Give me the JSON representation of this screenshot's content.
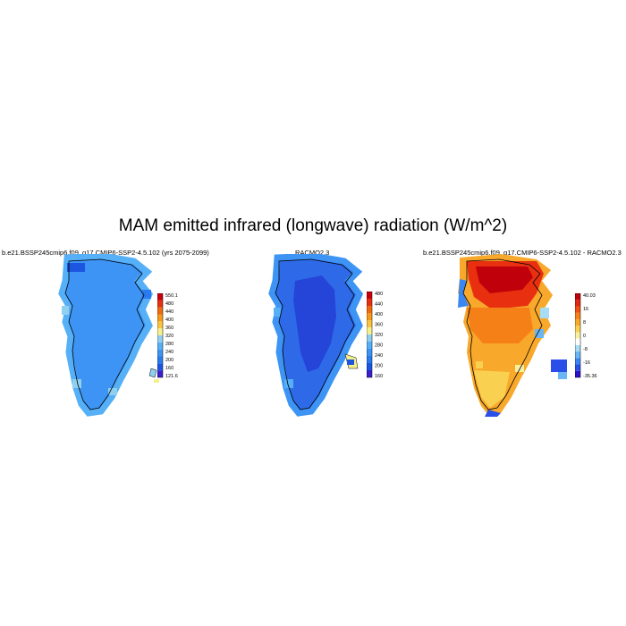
{
  "title": "MAM emitted infrared (longwave) radiation (W/m^2)",
  "panels": [
    {
      "title": "b.e21.BSSP245cmip6.f09_g17.CMIP6-SSP2-4.5.102 (yrs 2075-2099)",
      "colorbar": {
        "colors": [
          "#3a1fd0",
          "#1b55e0",
          "#2a7af0",
          "#3d94f5",
          "#56b0f7",
          "#8fd0f0",
          "#f5f08c",
          "#fac442",
          "#f59a1c",
          "#f06a10",
          "#e83010",
          "#c8000e"
        ],
        "labels": [
          "550.1",
          "480",
          "440",
          "400",
          "360",
          "320",
          "280",
          "240",
          "200",
          "160",
          "121.6"
        ]
      },
      "dominant_color": "#3d94f5"
    },
    {
      "title": "RACMO2.3",
      "colorbar": {
        "colors": [
          "#3a1fd0",
          "#1b55e0",
          "#2a7af0",
          "#3d94f5",
          "#56b0f7",
          "#8fd0f0",
          "#f5f08c",
          "#fac442",
          "#f59a1c",
          "#f06a10",
          "#e83010",
          "#c8000e"
        ],
        "labels": [
          "480",
          "440",
          "400",
          "360",
          "320",
          "280",
          "240",
          "200",
          "160"
        ]
      },
      "dominant_color": "#2e6ae8",
      "interior_color": "#2545d8"
    },
    {
      "title": "b.e21.BSSP245cmip6.f09_g17.CMIP6-SSP2-4.5.102 - RACMO2.3",
      "colorbar": {
        "colors": [
          "#2a10c8",
          "#2a4ee8",
          "#3a86f2",
          "#6ab6f4",
          "#a6dcf4",
          "#ffffff",
          "#f8f0a0",
          "#fad050",
          "#f8a82a",
          "#f58018",
          "#f05010",
          "#e02810",
          "#c0000a"
        ],
        "labels": [
          "40.03",
          "16",
          "8",
          "0",
          "-8",
          "-16",
          "-35.36"
        ]
      },
      "dominant_color": "#f8a82a",
      "north_color": "#e83010"
    }
  ]
}
